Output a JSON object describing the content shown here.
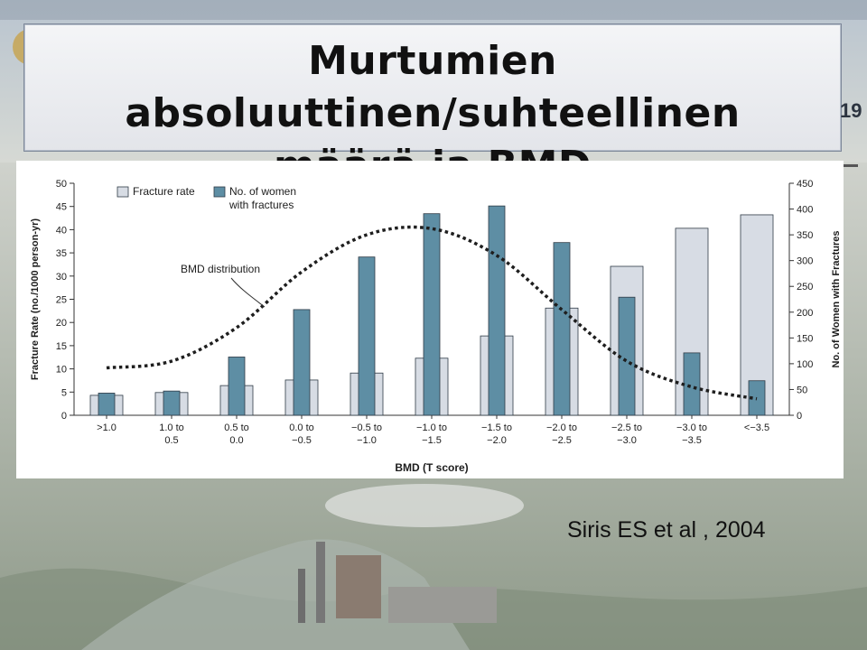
{
  "slide": {
    "title_line1": "Murtumien absoluuttinen/suhteellinen",
    "title_line2": "määrä ja BMD",
    "page_number": "19",
    "citation": "Siris ES et al , 2004"
  },
  "colors": {
    "fracture_rate": "#d7dce4",
    "women_count": "#5e8ea4",
    "bar_stroke": "#2f3b46",
    "curve": "#1e1e1e"
  },
  "chart_data": {
    "type": "bar",
    "title": "",
    "xlabel": "BMD (T score)",
    "ylabel": "Fracture Rate (no./1000 person-yr)",
    "y2label": "No. of Women with Fractures",
    "ylim": [
      0,
      50
    ],
    "y2lim": [
      0,
      450
    ],
    "yticks": [
      "0",
      "5",
      "10",
      "15",
      "20",
      "25",
      "30",
      "35",
      "40",
      "45",
      "50"
    ],
    "y2ticks": [
      "0",
      "50",
      "100",
      "150",
      "200",
      "250",
      "300",
      "350",
      "400",
      "450"
    ],
    "categories": [
      [
        ">1.0"
      ],
      [
        "1.0 to",
        "0.5"
      ],
      [
        "0.5 to",
        "0.0"
      ],
      [
        "0.0 to",
        "−0.5"
      ],
      [
        "−0.5 to",
        "−1.0"
      ],
      [
        "−1.0 to",
        "−1.5"
      ],
      [
        "−1.5 to",
        "−2.0"
      ],
      [
        "−2.0 to",
        "−2.5"
      ],
      [
        "−2.5 to",
        "−3.0"
      ],
      [
        "−3.0 to",
        "−3.5"
      ],
      [
        "<−3.5"
      ]
    ],
    "series": [
      {
        "name": "Fracture rate",
        "axis": "left",
        "values": [
          4.3,
          4.9,
          6.4,
          7.6,
          9.1,
          12.3,
          17.1,
          23.1,
          32.1,
          40.3,
          43.2
        ]
      },
      {
        "name": "No. of women with fractures",
        "axis": "right",
        "values": [
          43,
          47,
          113,
          205,
          307,
          391,
          406,
          335,
          229,
          121,
          67
        ]
      }
    ],
    "curve": {
      "label": "BMD distribution",
      "axis": "right",
      "values": [
        92,
        105,
        170,
        278,
        350,
        362,
        310,
        205,
        105,
        55,
        32
      ]
    },
    "legend": {
      "position": "top-left",
      "entries": [
        "Fracture rate",
        "No. of women",
        "with fractures"
      ]
    }
  }
}
